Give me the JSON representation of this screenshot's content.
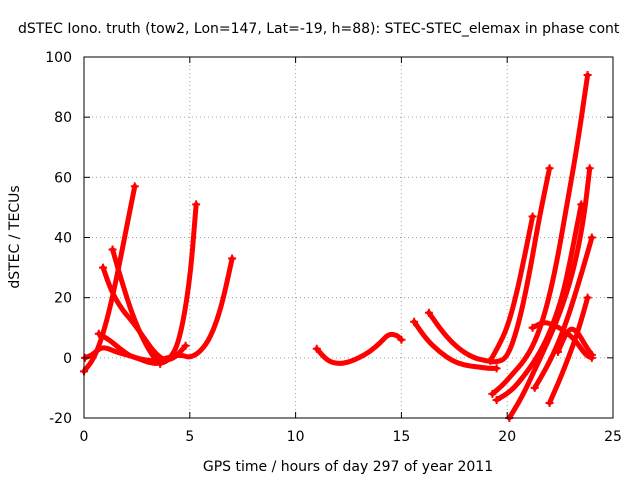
{
  "chart_data": {
    "type": "scatter",
    "title": "dSTEC Iono. truth (tow2, Lon=147, Lat=-19, h=88): STEC-STEC_elemax in phase cont",
    "xlabel": "GPS time / hours of day 297 of year 2011",
    "ylabel": "dSTEC  / TECUs",
    "xlim": [
      0,
      25
    ],
    "ylim": [
      -20,
      100
    ],
    "x_ticks": [
      0,
      5,
      10,
      15,
      20,
      25
    ],
    "y_ticks": [
      -20,
      0,
      20,
      40,
      60,
      80,
      100
    ],
    "x_tick_labels": [
      "0",
      "5",
      "10",
      "15",
      "20",
      "25"
    ],
    "y_tick_labels": [
      "-20",
      "0",
      "20",
      "40",
      "60",
      "80",
      "100"
    ],
    "grid": true,
    "series_color": "#ff0000",
    "arcs": [
      {
        "x": [
          0.0,
          0.5,
          1.0,
          1.5,
          2.0,
          2.4
        ],
        "y": [
          -4.5,
          0,
          10,
          25,
          43,
          57
        ]
      },
      {
        "x": [
          0.05,
          0.4,
          0.7,
          1.0,
          1.5,
          2.0,
          2.5,
          3.0,
          3.5,
          4.0,
          4.5,
          5.0,
          5.3
        ],
        "y": [
          0,
          1,
          3,
          3.5,
          2,
          1,
          0,
          -1.5,
          -2,
          -1,
          5,
          25,
          51
        ]
      },
      {
        "x": [
          0.7,
          1.2,
          1.7,
          2.2,
          2.7,
          3.2,
          3.7,
          4.2,
          4.6,
          5.0,
          5.5,
          6.0,
          6.5,
          7.0
        ],
        "y": [
          8,
          6,
          3,
          0.5,
          -0.5,
          -1,
          -0.5,
          0.5,
          1,
          0,
          2,
          7,
          17,
          33
        ]
      },
      {
        "x": [
          0.9,
          1.3,
          1.8,
          2.3,
          2.8,
          3.3,
          3.8,
          4.3,
          4.8
        ],
        "y": [
          30,
          22,
          16,
          12,
          7,
          2,
          -1,
          0,
          4
        ]
      },
      {
        "x": [
          1.35,
          1.8,
          2.3,
          2.8,
          3.3,
          3.6
        ],
        "y": [
          36,
          25,
          14,
          6,
          0,
          -2
        ]
      },
      {
        "x": [
          11.0,
          11.5,
          12.0,
          12.5,
          13.0,
          13.5,
          14.0,
          14.4,
          14.8,
          15.0
        ],
        "y": [
          3,
          -1,
          -2,
          -1.5,
          0,
          2,
          5,
          8,
          7.5,
          6
        ]
      },
      {
        "x": [
          15.6,
          16.2,
          16.8,
          17.4,
          18.0,
          18.6,
          19.1,
          19.5
        ],
        "y": [
          12,
          6,
          2,
          -1,
          -2.5,
          -3,
          -3.5,
          -3.5
        ]
      },
      {
        "x": [
          16.3,
          17.0,
          17.7,
          18.4,
          19.0,
          19.5,
          20.0,
          20.5,
          21.0,
          21.5,
          22.0
        ],
        "y": [
          15,
          8,
          3,
          0,
          -1,
          -1.5,
          0,
          10,
          26,
          46,
          63
        ]
      },
      {
        "x": [
          19.3,
          19.8,
          20.3,
          20.8,
          21.3,
          21.8,
          22.3,
          22.8,
          23.3,
          23.8
        ],
        "y": [
          -12,
          -9,
          -5,
          -1,
          5,
          15,
          30,
          50,
          70,
          94
        ]
      },
      {
        "x": [
          19.5,
          20.2,
          20.8,
          21.4,
          22.0,
          22.6,
          23.0,
          23.3,
          23.5
        ],
        "y": [
          -14,
          -11,
          -6,
          0,
          8,
          20,
          33,
          44,
          51
        ]
      },
      {
        "x": [
          20.1,
          20.7,
          21.3,
          21.9,
          22.5,
          23.1,
          23.6,
          23.9
        ],
        "y": [
          -20,
          -13,
          -4,
          5,
          15,
          28,
          45,
          63
        ]
      },
      {
        "x": [
          19.2,
          19.6,
          20.0,
          20.4,
          20.8,
          21.2
        ],
        "y": [
          -1,
          4,
          10,
          20,
          33,
          47
        ]
      },
      {
        "x": [
          21.2,
          21.7,
          22.2,
          22.7,
          23.2,
          23.6,
          23.8,
          24.0
        ],
        "y": [
          10,
          12,
          11,
          9,
          6,
          2,
          0.5,
          0
        ]
      },
      {
        "x": [
          21.3,
          21.8,
          22.3,
          22.8,
          23.3,
          23.8,
          24.0
        ],
        "y": [
          -10,
          -4,
          3,
          12,
          23,
          35,
          40
        ]
      },
      {
        "x": [
          22.0,
          22.5,
          23.0,
          23.4,
          23.8
        ],
        "y": [
          -15,
          -7,
          2,
          10,
          20
        ]
      },
      {
        "x": [
          22.4,
          22.9,
          23.3,
          23.7,
          24.0
        ],
        "y": [
          2,
          10,
          9,
          4,
          1
        ]
      }
    ]
  }
}
